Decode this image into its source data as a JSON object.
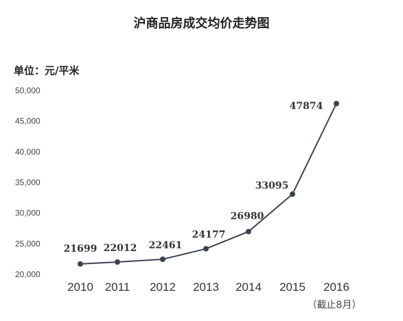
{
  "chart_data": {
    "type": "line",
    "title": "沪商品房成交均价走势图",
    "ylabel": "单位：元/平米",
    "xlabel": "",
    "categories": [
      "2010",
      "2011",
      "2012",
      "2013",
      "2014",
      "2015",
      "2016"
    ],
    "values": [
      21699,
      22012,
      22461,
      24177,
      26980,
      33095,
      47874
    ],
    "ylim": [
      20000,
      50000
    ],
    "yticks": [
      "20,000",
      "25,000",
      "30,000",
      "35,000",
      "40,000",
      "45,000",
      "50,000"
    ],
    "x_note": "（截止8月）",
    "grid": false,
    "line_color": "#3a4250",
    "marker_color": "#3a4250"
  }
}
